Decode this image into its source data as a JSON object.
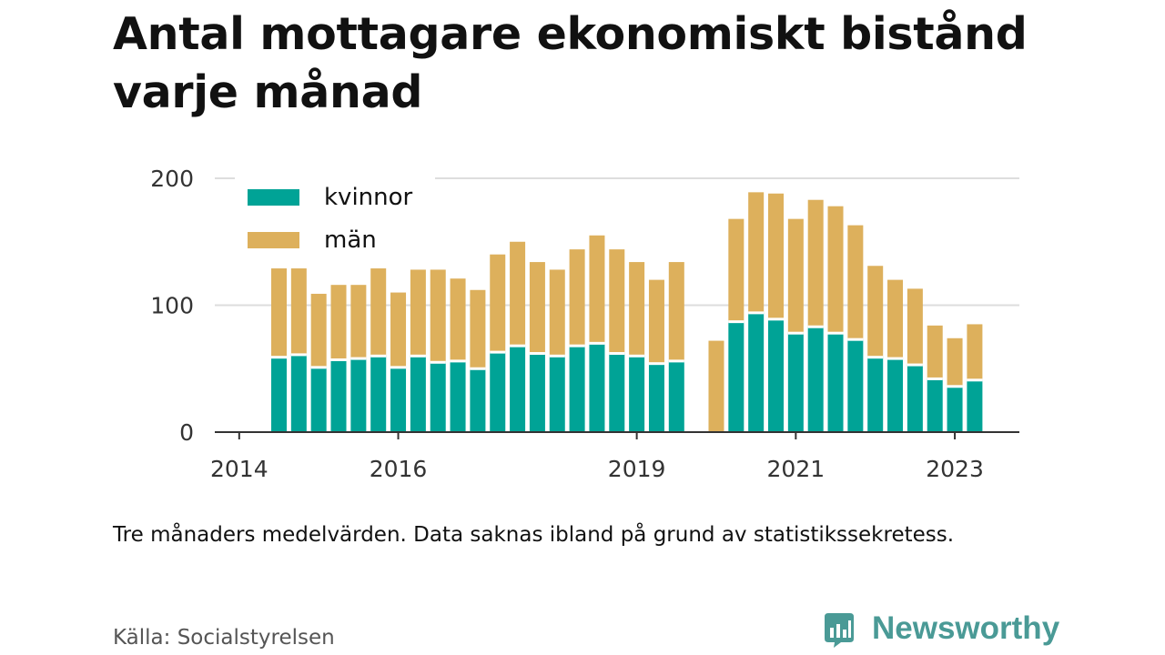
{
  "title": "Antal mottagare ekonomiskt bistånd varje månad",
  "note": "Tre månaders medelvärden. Data saknas ibland på grund av statistikssekretess.",
  "source": "Källa: Socialstyrelsen",
  "brand": {
    "name": "Newsworthy",
    "icon": "bar-chart-icon",
    "color": "#4a9a96"
  },
  "chart_data": {
    "type": "bar",
    "stacked": true,
    "ylim": [
      0,
      200
    ],
    "yticks": [
      0,
      100,
      200
    ],
    "xtick_labels": [
      "2014",
      "2016",
      "2019",
      "2021",
      "2023"
    ],
    "grid": true,
    "legend_position": "top-left",
    "colors": {
      "kvinnor": "#00a396",
      "män": "#ddb05c",
      "grid": "#dddddd",
      "axis": "#333333"
    },
    "x": [
      "2014-07",
      "2014-10",
      "2015-01",
      "2015-04",
      "2015-07",
      "2015-10",
      "2016-01",
      "2016-04",
      "2016-07",
      "2016-10",
      "2017-01",
      "2017-04",
      "2017-07",
      "2017-10",
      "2018-01",
      "2018-04",
      "2018-07",
      "2018-10",
      "2019-01",
      "2019-04",
      "2019-07",
      "2019-10",
      "2020-01",
      "2020-04",
      "2020-07",
      "2020-10",
      "2021-01",
      "2021-04",
      "2021-07",
      "2021-10",
      "2022-01",
      "2022-04",
      "2022-07",
      "2022-10",
      "2023-01",
      "2023-04"
    ],
    "series": [
      {
        "name": "kvinnor",
        "values": [
          59,
          61,
          51,
          57,
          58,
          60,
          51,
          60,
          55,
          56,
          50,
          63,
          68,
          62,
          60,
          68,
          70,
          62,
          60,
          54,
          56,
          null,
          null,
          87,
          94,
          89,
          78,
          83,
          78,
          73,
          59,
          58,
          53,
          42,
          36,
          41
        ]
      },
      {
        "name": "män",
        "values": [
          70,
          68,
          58,
          59,
          58,
          69,
          59,
          68,
          73,
          65,
          62,
          77,
          82,
          72,
          68,
          76,
          85,
          82,
          74,
          66,
          78,
          null,
          72,
          81,
          95,
          99,
          90,
          100,
          100,
          90,
          72,
          62,
          60,
          42,
          38,
          44
        ]
      }
    ]
  }
}
